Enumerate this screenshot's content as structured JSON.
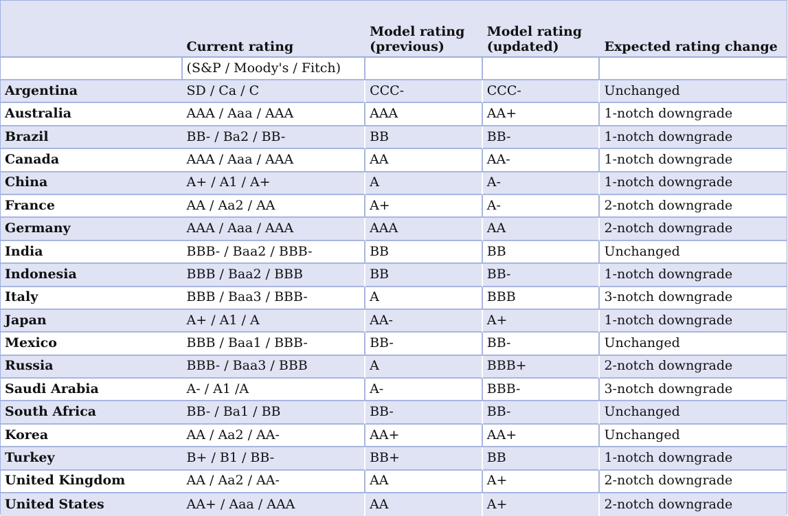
{
  "headers": {
    "country": "",
    "current_rating": "Current rating",
    "model_previous": "Model rating (previous)",
    "model_updated": "Model rating (updated)",
    "expected_change": "Expected rating change"
  },
  "subheader": {
    "current_rating_note": "(S&P / Moody's / Fitch)"
  },
  "rows": [
    {
      "country": "Argentina",
      "current": "SD / Ca / C",
      "previous": "CCC-",
      "updated": "CCC-",
      "change": "Unchanged"
    },
    {
      "country": "Australia",
      "current": "AAA / Aaa / AAA",
      "previous": "AAA",
      "updated": "AA+",
      "change": "1-notch downgrade"
    },
    {
      "country": "Brazil",
      "current": "BB- / Ba2 / BB-",
      "previous": "BB",
      "updated": "BB-",
      "change": "1-notch downgrade"
    },
    {
      "country": "Canada",
      "current": "AAA / Aaa / AAA",
      "previous": "AA",
      "updated": "AA-",
      "change": "1-notch downgrade"
    },
    {
      "country": "China",
      "current": "A+ / A1 / A+",
      "previous": "A",
      "updated": "A-",
      "change": "1-notch downgrade"
    },
    {
      "country": "France",
      "current": "AA / Aa2 / AA",
      "previous": "A+",
      "updated": "A-",
      "change": "2-notch downgrade"
    },
    {
      "country": "Germany",
      "current": "AAA / Aaa / AAA",
      "previous": "AAA",
      "updated": "AA",
      "change": "2-notch downgrade"
    },
    {
      "country": "India",
      "current": "BBB- / Baa2 / BBB-",
      "previous": "BB",
      "updated": "BB",
      "change": "Unchanged"
    },
    {
      "country": "Indonesia",
      "current": "BBB / Baa2 / BBB",
      "previous": "BB",
      "updated": "BB-",
      "change": "1-notch downgrade"
    },
    {
      "country": "Italy",
      "current": "BBB / Baa3 / BBB-",
      "previous": "A",
      "updated": "BBB",
      "change": "3-notch downgrade"
    },
    {
      "country": "Japan",
      "current": "A+ / A1 / A",
      "previous": "AA-",
      "updated": "A+",
      "change": "1-notch downgrade"
    },
    {
      "country": "Mexico",
      "current": "BBB / Baa1 / BBB-",
      "previous": "BB-",
      "updated": "BB-",
      "change": "Unchanged"
    },
    {
      "country": "Russia",
      "current": "BBB- / Baa3 / BBB",
      "previous": "A",
      "updated": "BBB+",
      "change": "2-notch downgrade"
    },
    {
      "country": "Saudi Arabia",
      "current": "A- / A1 /A",
      "previous": "A-",
      "updated": "BBB-",
      "change": "3-notch downgrade"
    },
    {
      "country": "South Africa",
      "current": "BB- / Ba1 / BB",
      "previous": "BB-",
      "updated": "BB-",
      "change": "Unchanged"
    },
    {
      "country": "Korea",
      "current": "AA / Aa2 / AA-",
      "previous": "AA+",
      "updated": "AA+",
      "change": "Unchanged"
    },
    {
      "country": "Turkey",
      "current": "B+ / B1 / BB-",
      "previous": "BB+",
      "updated": "BB",
      "change": "1-notch downgrade"
    },
    {
      "country": "United Kingdom",
      "current": "AA / Aa2 / AA-",
      "previous": "AA",
      "updated": "A+",
      "change": "2-notch downgrade"
    },
    {
      "country": "United States",
      "current": "AA+ / Aaa / AAA",
      "previous": "AA",
      "updated": "A+",
      "change": "2-notch downgrade"
    }
  ]
}
